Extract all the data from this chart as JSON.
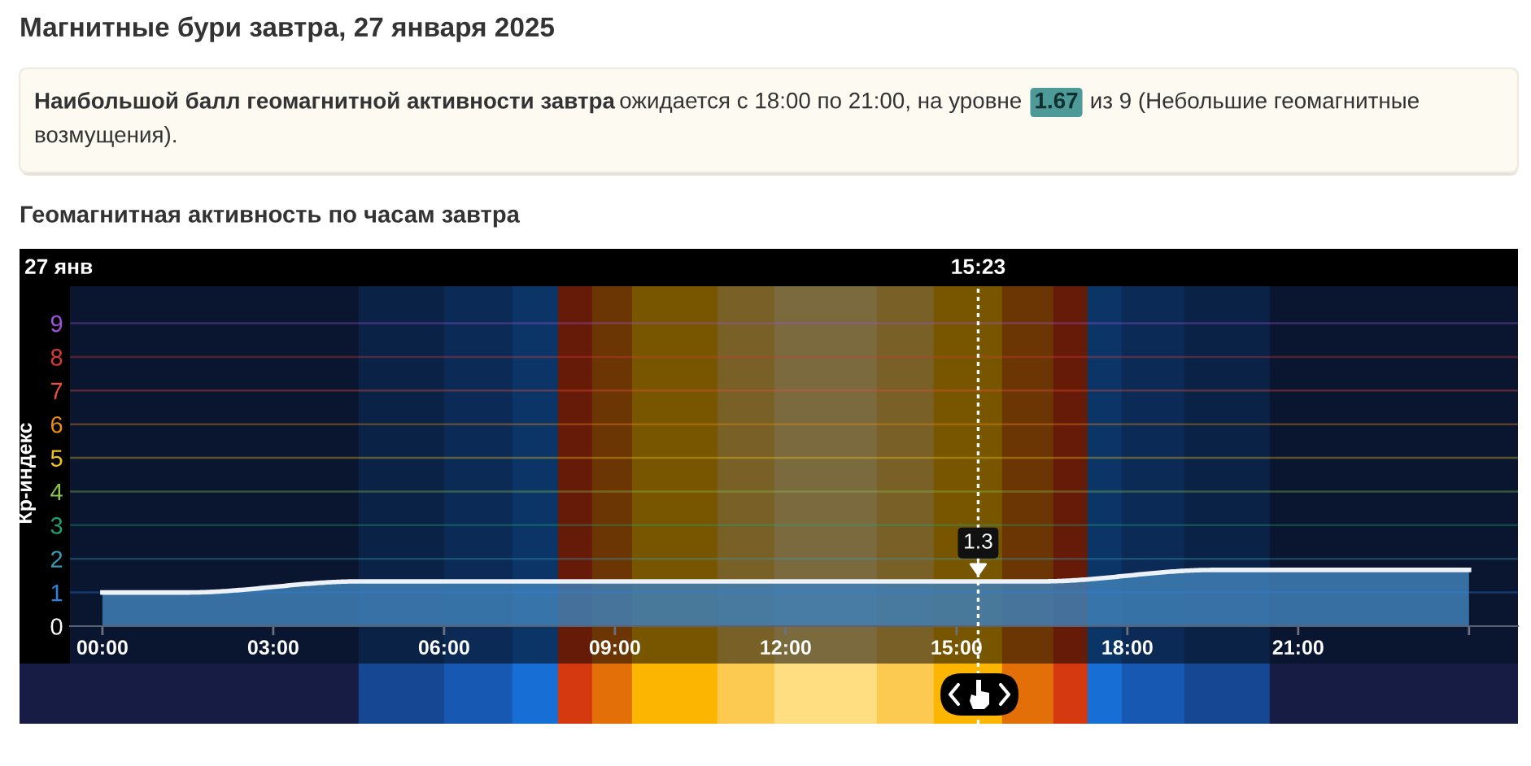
{
  "chart_data": {
    "type": "area",
    "title": "Магнитные бури завтра, 27 января 2025",
    "subtitle": "Геомагнитная активность по часам завтра",
    "ylabel": "Кр-индекс",
    "annotations": [
      "Наибольшой балл геомагнитной активности завтра",
      "ожидается с 18:00 по 21:00, на уровне",
      "1.67",
      "из 9 (Небольшие геомагнитные",
      "возмущения).",
      "27 янв",
      {
        "text": "1.3",
        "x": 15.38,
        "y": 1.33
      }
    ],
    "x": [
      0,
      1.5,
      4.5,
      7.5,
      10.5,
      13.5,
      16.5,
      19.5,
      22.5,
      24
    ],
    "series": [
      {
        "color": "#3f7fb6",
        "values": [
          1,
          1,
          1.33,
          1.33,
          1.33,
          1.33,
          1.33,
          1.67,
          1.67,
          1.67
        ]
      }
    ],
    "xlim": [
      -0.57,
      24.86
    ],
    "xticks": [
      {
        "value": 0,
        "label": "00:00"
      },
      {
        "value": 3,
        "label": "03:00"
      },
      {
        "value": 6,
        "label": "06:00"
      },
      {
        "value": 9,
        "label": "09:00"
      },
      {
        "value": 12,
        "label": "12:00"
      },
      {
        "value": 15,
        "label": "15:00"
      },
      {
        "value": 18,
        "label": "18:00"
      },
      {
        "value": 21,
        "label": "21:00"
      },
      {
        "value": 24,
        "label": null
      }
    ],
    "ylim": [
      0,
      10.1
    ],
    "yticks": [
      0,
      1,
      2,
      3,
      4,
      5,
      6,
      7,
      8,
      9
    ],
    "ref_lines": [
      {
        "axis": "x",
        "value": 15.38,
        "label": "15:23",
        "color": "#ffffff",
        "line_style": "dotted"
      },
      {
        "axis": "y",
        "value": 1,
        "color": "#2a82e0"
      },
      {
        "axis": "y",
        "value": 2,
        "color": "#3a9ab2"
      },
      {
        "axis": "y",
        "value": 3,
        "color": "#1fa374"
      },
      {
        "axis": "y",
        "value": 4,
        "color": "#8cc84b"
      },
      {
        "axis": "y",
        "value": 5,
        "color": "#f2c21c"
      },
      {
        "axis": "y",
        "value": 6,
        "color": "#f08c12"
      },
      {
        "axis": "y",
        "value": 7,
        "color": "#f04c3c"
      },
      {
        "axis": "y",
        "value": 8,
        "color": "#d83a3a"
      },
      {
        "axis": "y",
        "value": 9,
        "color": "#a052e0"
      }
    ],
    "bands": [
      {
        "axis": "x",
        "from": 4.5,
        "to": 20.5,
        "color": "#0a2246"
      },
      {
        "axis": "x",
        "from": 6.0,
        "to": 19.0,
        "color": "#0b2a55"
      },
      {
        "axis": "x",
        "from": 7.2,
        "to": 17.9,
        "color": "#0b3566"
      },
      {
        "axis": "x",
        "from": 8.0,
        "to": 17.3,
        "color": "#651b07"
      },
      {
        "axis": "x",
        "from": 8.6,
        "to": 16.7,
        "color": "#6c3504"
      },
      {
        "axis": "x",
        "from": 9.3,
        "to": 15.8,
        "color": "#785600"
      },
      {
        "axis": "x",
        "from": 10.8,
        "to": 14.6,
        "color": "#786026"
      },
      {
        "axis": "x",
        "from": 11.8,
        "to": 13.6,
        "color": "#7a6a3e"
      }
    ]
  }
}
